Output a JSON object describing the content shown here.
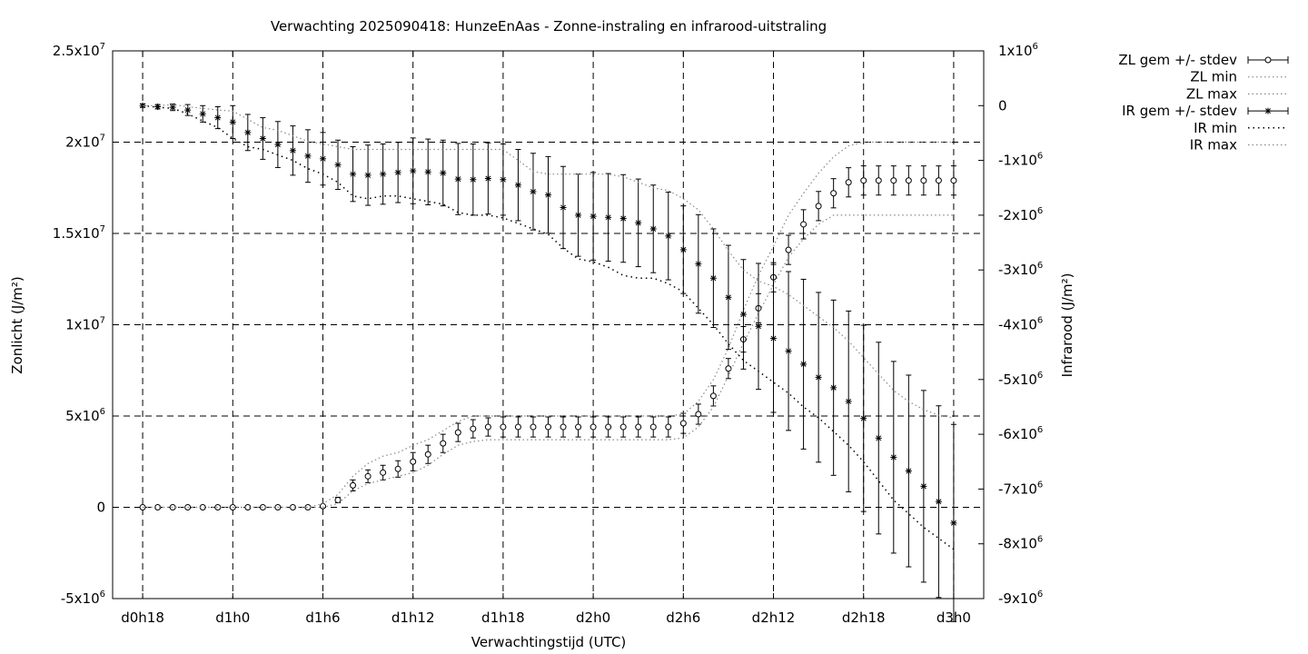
{
  "chart_data": {
    "type": "line",
    "title": "Verwachting 2025090418: HunzeEnAas - Zonne-instraling en infrarood-uitstraling",
    "xlabel": "Verwachtingstijd (UTC)",
    "ylabel": "Zonlicht (J/m²)",
    "y2label": "Infrarood (J/m²)",
    "x_ticks": [
      "d0h18",
      "d1h0",
      "d1h6",
      "d1h12",
      "d1h18",
      "d2h0",
      "d2h6",
      "d2h12",
      "d2h18",
      "d3h0"
    ],
    "x_tick_hours": [
      18,
      24,
      30,
      36,
      42,
      48,
      54,
      60,
      66,
      72
    ],
    "xlim_hours": [
      16,
      74
    ],
    "ylim": [
      -5000000,
      25000000
    ],
    "y2lim": [
      -9000000,
      1000000
    ],
    "y_ticks": [
      {
        "v": 25000000,
        "m": "2.5x10",
        "e": "7"
      },
      {
        "v": 20000000,
        "m": "2x10",
        "e": "7"
      },
      {
        "v": 15000000,
        "m": "1.5x10",
        "e": "7"
      },
      {
        "v": 10000000,
        "m": "1x10",
        "e": "7"
      },
      {
        "v": 5000000,
        "m": "5x10",
        "e": "6"
      },
      {
        "v": 0,
        "m": "0",
        "e": ""
      },
      {
        "v": -5000000,
        "m": "-5x10",
        "e": "6"
      }
    ],
    "y2_ticks": [
      {
        "v": 1000000,
        "m": "1x10",
        "e": "6"
      },
      {
        "v": 0,
        "m": "0",
        "e": ""
      },
      {
        "v": -1000000,
        "m": "-1x10",
        "e": "6"
      },
      {
        "v": -2000000,
        "m": "-2x10",
        "e": "6"
      },
      {
        "v": -3000000,
        "m": "-3x10",
        "e": "6"
      },
      {
        "v": -4000000,
        "m": "-4x10",
        "e": "6"
      },
      {
        "v": -5000000,
        "m": "-5x10",
        "e": "6"
      },
      {
        "v": -6000000,
        "m": "-6x10",
        "e": "6"
      },
      {
        "v": -7000000,
        "m": "-7x10",
        "e": "6"
      },
      {
        "v": -8000000,
        "m": "-8x10",
        "e": "6"
      },
      {
        "v": -9000000,
        "m": "-9x10",
        "e": "6"
      }
    ],
    "grid": true,
    "legend_position": "outside-top-right",
    "x_hours": [
      18,
      19,
      20,
      21,
      22,
      23,
      24,
      25,
      26,
      27,
      28,
      29,
      30,
      31,
      32,
      33,
      34,
      35,
      36,
      37,
      38,
      39,
      40,
      41,
      42,
      43,
      44,
      45,
      46,
      47,
      48,
      49,
      50,
      51,
      52,
      53,
      54,
      55,
      56,
      57,
      58,
      59,
      60,
      61,
      62,
      63,
      64,
      65,
      66,
      67,
      68,
      69,
      70,
      71,
      72
    ],
    "series": [
      {
        "name": "ZL gem +/- stdev",
        "axis": "y1",
        "marker": "circle",
        "mean": [
          0,
          0,
          0,
          0,
          0,
          0,
          0,
          0,
          0,
          0,
          0,
          0,
          60000,
          400000,
          1200000,
          1700000,
          1900000,
          2100000,
          2500000,
          2900000,
          3500000,
          4100000,
          4300000,
          4400000,
          4400000,
          4400000,
          4400000,
          4400000,
          4400000,
          4400000,
          4400000,
          4400000,
          4400000,
          4400000,
          4400000,
          4400000,
          4600000,
          5100000,
          6100000,
          7600000,
          9200000,
          10900000,
          12600000,
          14100000,
          15500000,
          16500000,
          17200000,
          17800000,
          17900000,
          17900000,
          17900000,
          17900000,
          17900000,
          17900000,
          17900000
        ],
        "stdev": [
          0,
          0,
          0,
          0,
          0,
          0,
          0,
          0,
          0,
          0,
          0,
          0,
          60000,
          150000,
          300000,
          350000,
          400000,
          450000,
          500000,
          500000,
          500000,
          500000,
          500000,
          500000,
          550000,
          550000,
          550000,
          550000,
          550000,
          550000,
          550000,
          550000,
          550000,
          550000,
          550000,
          550000,
          550000,
          550000,
          550000,
          550000,
          700000,
          800000,
          800000,
          800000,
          800000,
          800000,
          800000,
          800000,
          800000,
          800000,
          800000,
          800000,
          800000,
          800000,
          800000
        ]
      },
      {
        "name": "ZL min",
        "axis": "y1",
        "values": [
          0,
          0,
          0,
          0,
          0,
          0,
          0,
          0,
          0,
          0,
          0,
          0,
          0,
          200000,
          900000,
          1300000,
          1500000,
          1700000,
          1900000,
          2300000,
          2900000,
          3400000,
          3600000,
          3700000,
          3700000,
          3700000,
          3700000,
          3700000,
          3700000,
          3700000,
          3700000,
          3700000,
          3700000,
          3700000,
          3700000,
          3700000,
          3800000,
          4400000,
          5500000,
          7200000,
          9000000,
          10600000,
          12200000,
          13700000,
          14700000,
          15500000,
          16000000,
          16000000,
          16000000,
          16000000,
          16000000,
          16000000,
          16000000,
          16000000,
          16000000
        ]
      },
      {
        "name": "ZL max",
        "axis": "y1",
        "values": [
          0,
          0,
          0,
          0,
          0,
          0,
          0,
          0,
          0,
          0,
          0,
          0,
          200000,
          700000,
          1700000,
          2400000,
          2800000,
          3000000,
          3400000,
          3700000,
          4200000,
          4700000,
          5000000,
          5000000,
          5000000,
          5000000,
          5000000,
          5000000,
          5000000,
          5000000,
          5000000,
          5000000,
          5000000,
          5000000,
          5000000,
          5000000,
          5100000,
          5800000,
          7000000,
          8700000,
          10800000,
          12700000,
          14300000,
          16000000,
          17200000,
          18300000,
          19200000,
          19800000,
          20000000,
          20000000,
          20000000,
          20000000,
          20000000,
          20000000,
          20000000
        ]
      },
      {
        "name": "IR gem +/- stdev",
        "axis": "y2",
        "marker": "star",
        "mean": [
          0,
          -20000,
          -30000,
          -80000,
          -150000,
          -220000,
          -300000,
          -490000,
          -600000,
          -710000,
          -820000,
          -920000,
          -970000,
          -1080000,
          -1250000,
          -1270000,
          -1250000,
          -1220000,
          -1190000,
          -1210000,
          -1230000,
          -1340000,
          -1350000,
          -1330000,
          -1350000,
          -1450000,
          -1570000,
          -1630000,
          -1860000,
          -2000000,
          -2020000,
          -2040000,
          -2060000,
          -2140000,
          -2250000,
          -2380000,
          -2630000,
          -2890000,
          -3150000,
          -3500000,
          -3810000,
          -4030000,
          -4250000,
          -4480000,
          -4720000,
          -4960000,
          -5150000,
          -5400000,
          -5710000,
          -6070000,
          -6420000,
          -6670000,
          -6950000,
          -7230000,
          -7620000
        ],
        "stdev": [
          30000,
          40000,
          60000,
          100000,
          150000,
          200000,
          300000,
          330000,
          380000,
          420000,
          450000,
          480000,
          480000,
          450000,
          500000,
          550000,
          550000,
          550000,
          600000,
          600000,
          600000,
          650000,
          650000,
          650000,
          650000,
          650000,
          700000,
          700000,
          750000,
          750000,
          800000,
          800000,
          800000,
          800000,
          800000,
          800000,
          800000,
          900000,
          900000,
          950000,
          1000000,
          1150000,
          1350000,
          1450000,
          1550000,
          1550000,
          1600000,
          1650000,
          1700000,
          1750000,
          1750000,
          1750000,
          1750000,
          1750000,
          1800000
        ]
      },
      {
        "name": "IR min",
        "axis": "y2",
        "values": [
          0,
          -30000,
          -50000,
          -150000,
          -280000,
          -400000,
          -600000,
          -750000,
          -800000,
          -900000,
          -1000000,
          -1150000,
          -1250000,
          -1400000,
          -1650000,
          -1700000,
          -1650000,
          -1650000,
          -1700000,
          -1750000,
          -1800000,
          -1950000,
          -2000000,
          -2000000,
          -2050000,
          -2150000,
          -2250000,
          -2350000,
          -2600000,
          -2800000,
          -2850000,
          -2950000,
          -3100000,
          -3150000,
          -3150000,
          -3250000,
          -3400000,
          -3700000,
          -4000000,
          -4350000,
          -4650000,
          -4850000,
          -5050000,
          -5250000,
          -5500000,
          -5700000,
          -5950000,
          -6200000,
          -6500000,
          -6850000,
          -7200000,
          -7450000,
          -7700000,
          -7900000,
          -8100000
        ]
      },
      {
        "name": "IR max",
        "axis": "y2",
        "values": [
          0,
          0,
          20000,
          -20000,
          -50000,
          -80000,
          -100000,
          -250000,
          -400000,
          -450000,
          -550000,
          -650000,
          -700000,
          -750000,
          -800000,
          -800000,
          -800000,
          -800000,
          -800000,
          -800000,
          -800000,
          -800000,
          -800000,
          -800000,
          -800000,
          -1000000,
          -1200000,
          -1250000,
          -1250000,
          -1250000,
          -1250000,
          -1250000,
          -1300000,
          -1400000,
          -1500000,
          -1550000,
          -1700000,
          -1900000,
          -2250000,
          -2650000,
          -3000000,
          -3200000,
          -3300000,
          -3450000,
          -3650000,
          -3850000,
          -4050000,
          -4300000,
          -4600000,
          -4900000,
          -5200000,
          -5400000,
          -5550000,
          -5650000,
          -5700000
        ]
      }
    ]
  }
}
